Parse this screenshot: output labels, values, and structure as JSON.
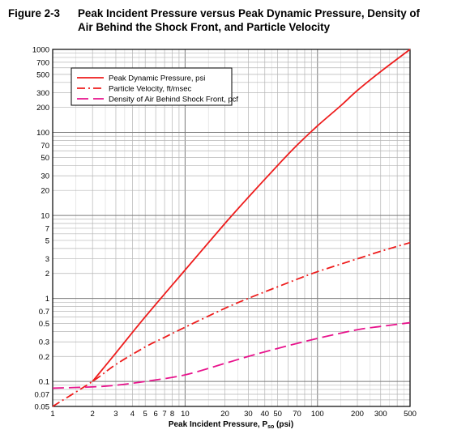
{
  "figure": {
    "number": "Figure 2-3",
    "title_line1": "Peak Incident Pressure versus Peak Dynamic Pressure, Density of",
    "title_line2": "Air Behind the Shock Front, and Particle Velocity"
  },
  "chart_data": {
    "type": "line",
    "xscale": "log",
    "yscale": "log",
    "xlim": [
      1,
      500
    ],
    "ylim": [
      0.05,
      1000
    ],
    "xlabel_main": "Peak Incident Pressure, P",
    "xlabel_sub": "so",
    "xlabel_unit": " (psi)",
    "xticks": [
      1,
      2,
      3,
      4,
      5,
      6,
      7,
      8,
      10,
      20,
      30,
      40,
      50,
      70,
      100,
      200,
      300,
      500
    ],
    "xtick_labels": [
      "1",
      "2",
      "3",
      "4",
      "5",
      "6",
      "7",
      "8",
      "10",
      "20",
      "30",
      "40",
      "50",
      "70",
      "100",
      "200",
      "300",
      "500"
    ],
    "yticks": [
      0.05,
      0.07,
      0.1,
      0.2,
      0.3,
      0.5,
      0.7,
      1,
      2,
      3,
      5,
      7,
      10,
      20,
      30,
      50,
      70,
      100,
      200,
      300,
      500,
      700,
      1000
    ],
    "ytick_labels": [
      "0.05",
      "0.07",
      "0.1",
      "0.2",
      "0.3",
      "0.5",
      "0.7",
      "1",
      "2",
      "3",
      "5",
      "7",
      "10",
      "20",
      "30",
      "50",
      "70",
      "100",
      "200",
      "300",
      "500",
      "700",
      "1000"
    ],
    "grid": true,
    "legend_position": "top-left",
    "series": [
      {
        "name": "Peak Dynamic Pressure, psi",
        "color": "#ee1c1c",
        "style": "solid",
        "x": [
          2,
          3,
          5,
          10,
          20,
          30,
          50,
          70,
          100,
          150,
          200,
          300,
          500
        ],
        "y": [
          0.1,
          0.22,
          0.6,
          2.2,
          8,
          16.5,
          40,
          70,
          120,
          210,
          320,
          540,
          1000
        ]
      },
      {
        "name": "Particle Velocity, ft/msec",
        "color": "#ee1c1c",
        "style": "dash-dot",
        "x": [
          1,
          2,
          3,
          5,
          7,
          10,
          20,
          30,
          50,
          70,
          100,
          200,
          300,
          500
        ],
        "y": [
          0.05,
          0.1,
          0.16,
          0.26,
          0.34,
          0.45,
          0.76,
          1.0,
          1.38,
          1.7,
          2.1,
          3.0,
          3.7,
          4.7
        ]
      },
      {
        "name": "Density of Air Behind Shock Front, pcf",
        "color": "#e8138c",
        "style": "dash",
        "x": [
          1,
          2,
          3,
          5,
          10,
          20,
          30,
          50,
          100,
          200,
          300,
          500
        ],
        "y": [
          0.083,
          0.086,
          0.09,
          0.1,
          0.12,
          0.165,
          0.2,
          0.25,
          0.33,
          0.42,
          0.46,
          0.51
        ]
      }
    ]
  }
}
